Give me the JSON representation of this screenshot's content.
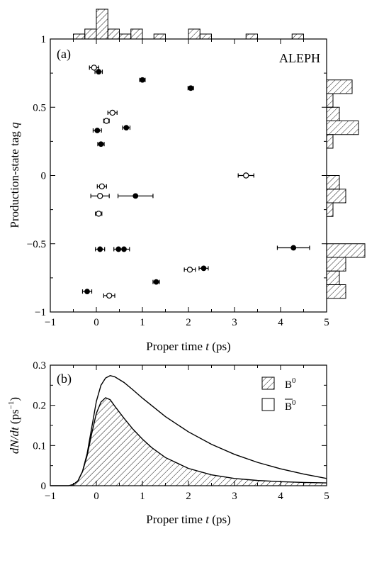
{
  "chart_data": [
    {
      "type": "scatter",
      "panel_label": "(a)",
      "annotation": "ALEPH",
      "xlabel_prefix": "Proper time ",
      "xlabel_var": "t",
      "xlabel_unit": " (ps)",
      "ylabel_prefix": "Production-state tag ",
      "ylabel_var": "q",
      "xlim": [
        -1,
        5
      ],
      "ylim": [
        -1,
        1
      ],
      "x_ticks": [
        -1,
        0,
        1,
        2,
        3,
        4,
        5
      ],
      "x_tick_labels": [
        "−1",
        "0",
        "1",
        "2",
        "3",
        "4",
        "5"
      ],
      "y_ticks": [
        -1,
        -0.5,
        0,
        0.5,
        1
      ],
      "y_tick_labels": [
        "−1",
        "−0.5",
        "0",
        "0.5",
        "1"
      ],
      "series": [
        {
          "marker": "filled-circle",
          "points": [
            {
              "t": 0.05,
              "q": 0.76,
              "err": 0.08
            },
            {
              "t": 1.0,
              "q": 0.7,
              "err": 0.06
            },
            {
              "t": 2.05,
              "q": 0.64,
              "err": 0.06
            },
            {
              "t": 0.65,
              "q": 0.35,
              "err": 0.08
            },
            {
              "t": 0.02,
              "q": 0.33,
              "err": 0.09
            },
            {
              "t": 0.1,
              "q": 0.23,
              "err": 0.07
            },
            {
              "t": 0.85,
              "q": -0.15,
              "err": 0.38
            },
            {
              "t": 0.08,
              "q": -0.54,
              "err": 0.1
            },
            {
              "t": 0.48,
              "q": -0.54,
              "err": 0.1
            },
            {
              "t": 0.6,
              "q": -0.54,
              "err": 0.12
            },
            {
              "t": 4.28,
              "q": -0.53,
              "err": 0.35
            },
            {
              "t": 2.33,
              "q": -0.68,
              "err": 0.1
            },
            {
              "t": 1.3,
              "q": -0.78,
              "err": 0.07
            },
            {
              "t": -0.2,
              "q": -0.85,
              "err": 0.1
            }
          ]
        },
        {
          "marker": "open-circle",
          "points": [
            {
              "t": -0.05,
              "q": 0.79,
              "err": 0.1
            },
            {
              "t": 0.35,
              "q": 0.46,
              "err": 0.1
            },
            {
              "t": 0.22,
              "q": 0.4,
              "err": 0.06
            },
            {
              "t": 3.25,
              "q": 0.0,
              "err": 0.17
            },
            {
              "t": 0.12,
              "q": -0.08,
              "err": 0.1
            },
            {
              "t": 0.08,
              "q": -0.15,
              "err": 0.2
            },
            {
              "t": 0.05,
              "q": -0.28,
              "err": 0.07
            },
            {
              "t": 2.03,
              "q": -0.69,
              "err": 0.12
            },
            {
              "t": 0.28,
              "q": -0.88,
              "err": 0.12
            }
          ]
        }
      ],
      "top_histogram": {
        "bin_width": 0.25,
        "bins": [
          {
            "lo": -0.5,
            "count": 1
          },
          {
            "lo": -0.25,
            "count": 2
          },
          {
            "lo": 0.0,
            "count": 6
          },
          {
            "lo": 0.25,
            "count": 2
          },
          {
            "lo": 0.5,
            "count": 1
          },
          {
            "lo": 0.75,
            "count": 2
          },
          {
            "lo": 1.25,
            "count": 1
          },
          {
            "lo": 2.0,
            "count": 2
          },
          {
            "lo": 2.25,
            "count": 1
          },
          {
            "lo": 3.25,
            "count": 1
          },
          {
            "lo": 4.25,
            "count": 1
          }
        ]
      },
      "right_histogram": {
        "bin_width": 0.1,
        "bins": [
          {
            "lo": 0.6,
            "count": 4
          },
          {
            "lo": 0.5,
            "count": 1
          },
          {
            "lo": 0.4,
            "count": 2
          },
          {
            "lo": 0.3,
            "count": 5
          },
          {
            "lo": 0.2,
            "count": 1
          },
          {
            "lo": -0.1,
            "count": 2
          },
          {
            "lo": -0.2,
            "count": 3
          },
          {
            "lo": -0.3,
            "count": 1
          },
          {
            "lo": -0.6,
            "count": 6
          },
          {
            "lo": -0.7,
            "count": 3
          },
          {
            "lo": -0.8,
            "count": 2
          },
          {
            "lo": -0.9,
            "count": 3
          }
        ]
      }
    },
    {
      "type": "area",
      "panel_label": "(b)",
      "xlabel_prefix": "Proper time ",
      "xlabel_var": "t",
      "xlabel_unit": " (ps)",
      "ylabel_var": "dN/dt",
      "ylabel_unit": " (ps",
      "ylabel_exp": "−1",
      "ylabel_close": ")",
      "xlim": [
        -1,
        5
      ],
      "ylim": [
        0,
        0.3
      ],
      "x_ticks": [
        -1,
        0,
        1,
        2,
        3,
        4,
        5
      ],
      "x_tick_labels": [
        "−1",
        "0",
        "1",
        "2",
        "3",
        "4",
        "5"
      ],
      "y_ticks": [
        0,
        0.1,
        0.2,
        0.3
      ],
      "y_tick_labels": [
        "0",
        "0.1",
        "0.2",
        "0.3"
      ],
      "legend_position": "top-right",
      "series": [
        {
          "name": "B",
          "name_sup": "0",
          "fill": "hatched",
          "x": [
            -0.6,
            -0.5,
            -0.4,
            -0.3,
            -0.2,
            -0.1,
            0.0,
            0.1,
            0.2,
            0.3,
            0.4,
            0.6,
            0.8,
            1.0,
            1.2,
            1.5,
            2.0,
            2.5,
            3.0,
            3.5,
            4.0,
            4.5,
            5.0
          ],
          "values": [
            0.0,
            0.003,
            0.012,
            0.035,
            0.075,
            0.13,
            0.18,
            0.208,
            0.219,
            0.214,
            0.198,
            0.168,
            0.14,
            0.116,
            0.095,
            0.07,
            0.043,
            0.027,
            0.018,
            0.013,
            0.01,
            0.008,
            0.007
          ]
        },
        {
          "name": "B",
          "name_sup": "0",
          "name_bar": true,
          "fill": "none",
          "x": [
            -0.6,
            -0.5,
            -0.4,
            -0.3,
            -0.2,
            -0.1,
            0.0,
            0.1,
            0.2,
            0.3,
            0.4,
            0.6,
            0.8,
            1.0,
            1.5,
            2.0,
            2.5,
            3.0,
            3.5,
            4.0,
            4.5,
            5.0
          ],
          "values": [
            0.0,
            0.003,
            0.012,
            0.036,
            0.08,
            0.145,
            0.21,
            0.25,
            0.268,
            0.274,
            0.271,
            0.257,
            0.238,
            0.218,
            0.172,
            0.134,
            0.103,
            0.078,
            0.058,
            0.042,
            0.029,
            0.018
          ]
        }
      ]
    }
  ]
}
